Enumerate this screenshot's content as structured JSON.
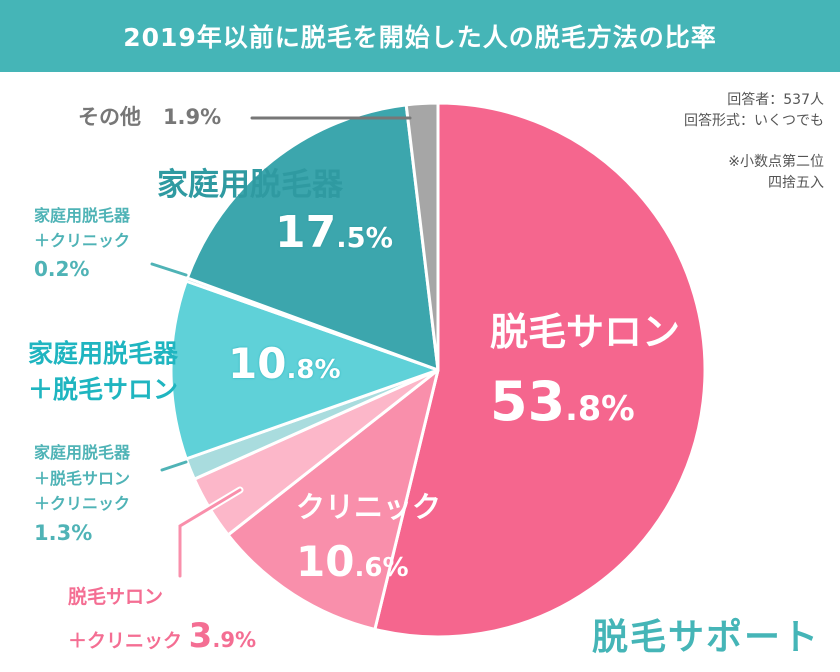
{
  "title": "2019年以前に脱毛を開始した人の脱毛方法の比率",
  "notes": {
    "respondents": "回答者：537人",
    "format": "回答形式：いくつでも",
    "rounding_1": "※小数点第二位",
    "rounding_2": "四捨五入"
  },
  "brand": "脱毛サポート",
  "chart_data": {
    "type": "pie",
    "title": "2019年以前に脱毛を開始した人の脱毛方法の比率",
    "start": "top",
    "direction": "clockwise",
    "slices": [
      {
        "label": "脱毛サロン",
        "value": 53.8,
        "pct": "53.8%",
        "color": "#f5668e"
      },
      {
        "label": "クリニック",
        "value": 10.6,
        "pct": "10.6%",
        "color": "#f98fab"
      },
      {
        "label": "脱毛サロン＋クリニック",
        "line1": "脱毛サロン",
        "line2": "＋クリニック",
        "value": 3.9,
        "pct": "3.9%",
        "color": "#fcb7c9"
      },
      {
        "label": "家庭用脱毛器＋脱毛サロン＋クリニック",
        "line1": "家庭用脱毛器",
        "line2": "＋脱毛サロン",
        "line3": "＋クリニック",
        "value": 1.3,
        "pct": "1.3%",
        "color": "#a9dcde"
      },
      {
        "label": "家庭用脱毛器＋脱毛サロン",
        "line1": "家庭用脱毛器",
        "line2": "＋脱毛サロン",
        "value": 10.8,
        "pct": "10.8%",
        "color": "#5fd1d8"
      },
      {
        "label": "家庭用脱毛器＋クリニック",
        "line1": "家庭用脱毛器",
        "line2": "＋クリニック",
        "value": 0.2,
        "pct": "0.2%",
        "color": "#8fcfd2"
      },
      {
        "label": "家庭用脱毛器",
        "value": 17.5,
        "pct": "17.5%",
        "color": "#3ca6ad"
      },
      {
        "label": "その他",
        "value": 1.9,
        "pct": "1.9%",
        "color": "#a6a6a6"
      }
    ]
  }
}
